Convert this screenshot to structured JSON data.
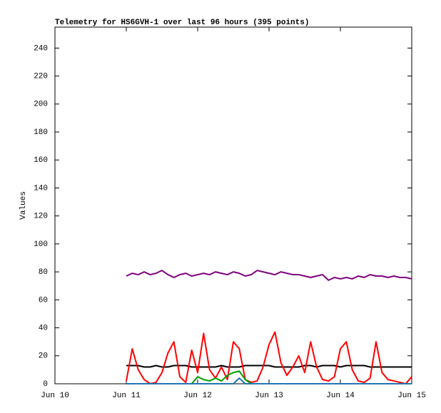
{
  "chart_data": {
    "type": "line",
    "title": "Telemetry for HS6GVH-1 over last 96 hours (395 points)",
    "y_label": "Values",
    "xlim": [
      0,
      120
    ],
    "xticks": [
      {
        "value": 0,
        "label": "Jun 10"
      },
      {
        "value": 24,
        "label": "Jun 11"
      },
      {
        "value": 48,
        "label": "Jun 12"
      },
      {
        "value": 72,
        "label": "Jun 13"
      },
      {
        "value": 96,
        "label": "Jun 14"
      },
      {
        "value": 120,
        "label": "Jun 15"
      }
    ],
    "ylim": [
      0,
      255
    ],
    "yticks": [
      0,
      20,
      40,
      60,
      80,
      100,
      120,
      140,
      160,
      180,
      200,
      220,
      240
    ],
    "x": [
      24,
      26,
      28,
      30,
      32,
      34,
      36,
      38,
      40,
      42,
      44,
      46,
      48,
      50,
      52,
      54,
      56,
      58,
      60,
      62,
      64,
      66,
      68,
      70,
      72,
      74,
      76,
      78,
      80,
      82,
      84,
      86,
      88,
      90,
      92,
      94,
      96,
      98,
      100,
      102,
      104,
      106,
      108,
      110,
      112,
      114,
      116,
      118,
      120
    ],
    "series": [
      {
        "color": "#800080",
        "values": [
          77,
          79,
          78,
          80,
          78,
          79,
          81,
          78,
          76,
          78,
          79,
          77,
          78,
          79,
          78,
          80,
          79,
          78,
          80,
          79,
          77,
          78,
          81,
          80,
          79,
          78,
          80,
          79,
          78,
          78,
          77,
          76,
          77,
          78,
          74,
          76,
          75,
          76,
          75,
          77,
          76,
          78,
          77,
          77,
          76,
          77,
          76,
          76,
          75
        ]
      },
      {
        "color": "#000000",
        "values": [
          13,
          13,
          13,
          12,
          12,
          13,
          12,
          12,
          13,
          13,
          13,
          12,
          12,
          12,
          12,
          12,
          13,
          12,
          12,
          12,
          13,
          13,
          13,
          13,
          13,
          12,
          12,
          12,
          12,
          12,
          13,
          13,
          12,
          13,
          13,
          13,
          12,
          13,
          13,
          13,
          13,
          12,
          12,
          12,
          12,
          12,
          12,
          12,
          12
        ]
      },
      {
        "color": "#ff0000",
        "values": [
          2,
          25,
          10,
          3,
          0,
          1,
          8,
          22,
          30,
          5,
          1,
          24,
          8,
          36,
          10,
          4,
          12,
          3,
          30,
          25,
          3,
          1,
          2,
          12,
          28,
          37,
          15,
          6,
          12,
          20,
          8,
          30,
          12,
          3,
          2,
          5,
          25,
          30,
          10,
          2,
          1,
          4,
          30,
          8,
          3,
          2,
          1,
          0,
          5
        ]
      },
      {
        "color": "#00a000",
        "values": [
          0,
          0,
          0,
          0,
          0,
          0,
          0,
          0,
          0,
          0,
          0,
          0,
          5,
          3,
          2,
          4,
          2,
          6,
          8,
          9,
          3,
          0,
          0,
          0,
          0,
          0,
          0,
          0,
          0,
          0,
          0,
          0,
          0,
          0,
          0,
          0,
          0,
          0,
          0,
          0,
          0,
          0,
          0,
          0,
          0,
          0,
          0,
          0,
          0
        ]
      },
      {
        "color": "#1f77b4",
        "values": [
          0,
          0,
          0,
          0,
          0,
          0,
          0,
          0,
          0,
          0,
          0,
          0,
          0,
          0,
          0,
          0,
          0,
          0,
          0,
          4,
          0,
          0,
          0,
          0,
          0,
          0,
          0,
          0,
          0,
          0,
          0,
          0,
          0,
          0,
          0,
          0,
          0,
          0,
          0,
          0,
          0,
          0,
          0,
          0,
          0,
          0,
          0,
          0,
          0
        ]
      }
    ]
  }
}
